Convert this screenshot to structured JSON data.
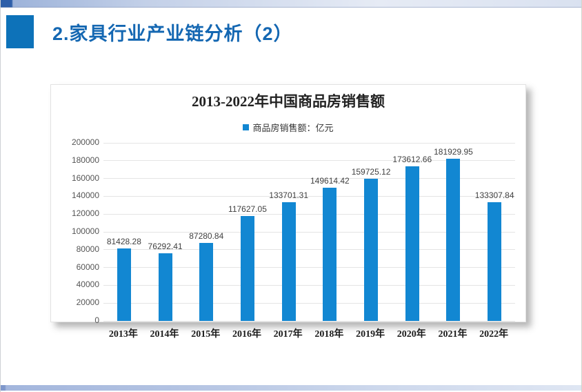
{
  "slide": {
    "title": "2.家具行业产业链分析（2）"
  },
  "chart_data": {
    "type": "bar",
    "title": "2013-2022年中国商品房销售额",
    "legend": "商品房销售额：亿元",
    "legend_position": "top",
    "categories": [
      "2013年",
      "2014年",
      "2015年",
      "2016年",
      "2017年",
      "2018年",
      "2019年",
      "2020年",
      "2021年",
      "2022年"
    ],
    "values": [
      81428.28,
      76292.41,
      87280.84,
      117627.05,
      133701.31,
      149614.42,
      159725.12,
      173612.66,
      181929.95,
      133307.84
    ],
    "data_labels": [
      "81428.28",
      "76292.41",
      "87280.84",
      "117627.05",
      "133701.31",
      "149614.42",
      "159725.12",
      "173612.66",
      "181929.95",
      "133307.84"
    ],
    "xlabel": "",
    "ylabel": "",
    "ylim": [
      0,
      200000
    ],
    "ytick_step": 20000,
    "grid": true,
    "bar_color": "#1287d2"
  },
  "colors": {
    "accent_blue": "#1467b2",
    "header_square_blue": "#0d72b9",
    "bar_blue": "#1287d2",
    "top_strip_dark": "#2e5fa9",
    "top_strip_light": "#e6ebf5",
    "bottom_strip_left": "#7e97cb",
    "bottom_strip_right": "#dfe6f3"
  }
}
